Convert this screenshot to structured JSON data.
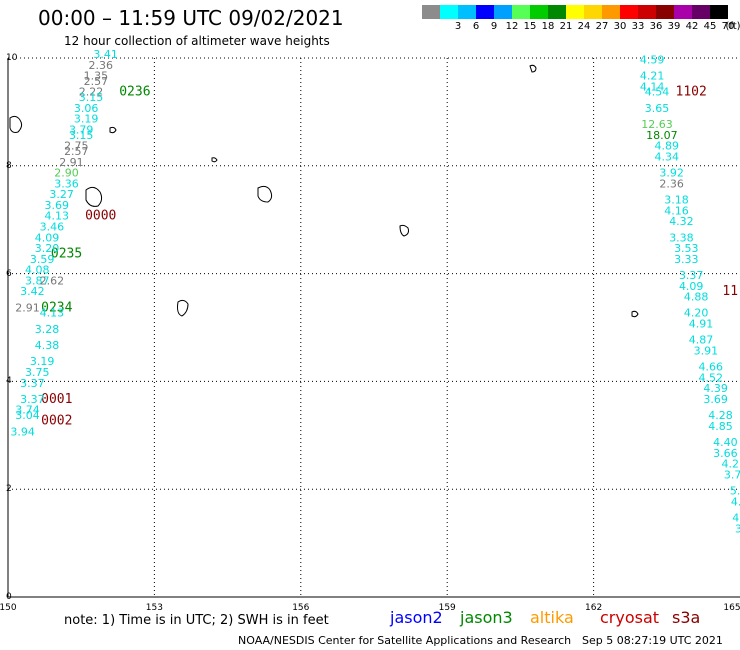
{
  "header": {
    "title": "00:00 – 11:59 UTC 09/02/2021",
    "subtitle": "12 hour collection of altimeter wave heights"
  },
  "legend": {
    "unit": "(ft)",
    "bins": [
      {
        "label": "",
        "color": "#8c8c8c"
      },
      {
        "label": "3",
        "color": "#00ffff"
      },
      {
        "label": "6",
        "color": "#00bfff"
      },
      {
        "label": "9",
        "color": "#0000ff"
      },
      {
        "label": "12",
        "color": "#00a0ff"
      },
      {
        "label": "15",
        "color": "#55ff55"
      },
      {
        "label": "18",
        "color": "#00cc00"
      },
      {
        "label": "21",
        "color": "#008800"
      },
      {
        "label": "24",
        "color": "#ffff00"
      },
      {
        "label": "27",
        "color": "#ffd700"
      },
      {
        "label": "30",
        "color": "#ff9900"
      },
      {
        "label": "33",
        "color": "#ff0000"
      },
      {
        "label": "36",
        "color": "#cc0000"
      },
      {
        "label": "39",
        "color": "#880000"
      },
      {
        "label": "42",
        "color": "#aa00aa"
      },
      {
        "label": "45",
        "color": "#660066"
      },
      {
        "label": "70",
        "color": "#000000"
      }
    ]
  },
  "axes": {
    "x_ticks": [
      "150",
      "153",
      "156",
      "159",
      "162",
      "165"
    ],
    "y_ticks": [
      "0",
      "2",
      "4",
      "6",
      "8",
      "10"
    ],
    "xlim": [
      150,
      165
    ],
    "ylim": [
      0,
      10
    ]
  },
  "track_labels": [
    {
      "text": "0236",
      "lon": 152.6,
      "lat": 9.3,
      "color": "#008800"
    },
    {
      "text": "0000",
      "lon": 151.9,
      "lat": 7.0,
      "color": "#880000"
    },
    {
      "text": "0235",
      "lon": 151.2,
      "lat": 6.3,
      "color": "#008800"
    },
    {
      "text": "0234",
      "lon": 151.0,
      "lat": 5.3,
      "color": "#008800"
    },
    {
      "text": "0001",
      "lon": 151.0,
      "lat": 3.6,
      "color": "#880000"
    },
    {
      "text": "0002",
      "lon": 151.0,
      "lat": 3.2,
      "color": "#880000"
    },
    {
      "text": "1102",
      "lon": 164.0,
      "lat": 9.3,
      "color": "#880000"
    },
    {
      "text": "11",
      "lon": 164.8,
      "lat": 5.6,
      "color": "#880000"
    }
  ],
  "observations": [
    {
      "text": "3.41",
      "lon": 152.0,
      "lat": 10.0,
      "color": "#00dddd"
    },
    {
      "text": "2.36",
      "lon": 151.9,
      "lat": 9.8,
      "color": "#777777"
    },
    {
      "text": "1.35",
      "lon": 151.8,
      "lat": 9.6,
      "color": "#777777"
    },
    {
      "text": "2.57",
      "lon": 151.8,
      "lat": 9.5,
      "color": "#777777"
    },
    {
      "text": "2.22",
      "lon": 151.7,
      "lat": 9.3,
      "color": "#777777"
    },
    {
      "text": "3.15",
      "lon": 151.7,
      "lat": 9.2,
      "color": "#00dddd"
    },
    {
      "text": "3.06",
      "lon": 151.6,
      "lat": 9.0,
      "color": "#00dddd"
    },
    {
      "text": "3.19",
      "lon": 151.6,
      "lat": 8.8,
      "color": "#00dddd"
    },
    {
      "text": "3.79",
      "lon": 151.5,
      "lat": 8.6,
      "color": "#00dddd"
    },
    {
      "text": "3.15",
      "lon": 151.5,
      "lat": 8.5,
      "color": "#00dddd"
    },
    {
      "text": "2.75",
      "lon": 151.4,
      "lat": 8.3,
      "color": "#777777"
    },
    {
      "text": "2.57",
      "lon": 151.4,
      "lat": 8.2,
      "color": "#777777"
    },
    {
      "text": "2.91",
      "lon": 151.3,
      "lat": 8.0,
      "color": "#777777"
    },
    {
      "text": "2.90",
      "lon": 151.2,
      "lat": 7.8,
      "color": "#55cc55"
    },
    {
      "text": "3.36",
      "lon": 151.2,
      "lat": 7.6,
      "color": "#00dddd"
    },
    {
      "text": "3.27",
      "lon": 151.1,
      "lat": 7.4,
      "color": "#00dddd"
    },
    {
      "text": "3.69",
      "lon": 151.0,
      "lat": 7.2,
      "color": "#00dddd"
    },
    {
      "text": "4.13",
      "lon": 151.0,
      "lat": 7.0,
      "color": "#00dddd"
    },
    {
      "text": "3.46",
      "lon": 150.9,
      "lat": 6.8,
      "color": "#00dddd"
    },
    {
      "text": "4.09",
      "lon": 150.8,
      "lat": 6.6,
      "color": "#00dddd"
    },
    {
      "text": "3.20",
      "lon": 150.8,
      "lat": 6.4,
      "color": "#00dddd"
    },
    {
      "text": "3.59",
      "lon": 150.7,
      "lat": 6.2,
      "color": "#00dddd"
    },
    {
      "text": "4.08",
      "lon": 150.6,
      "lat": 6.0,
      "color": "#00dddd"
    },
    {
      "text": "3.87",
      "lon": 150.6,
      "lat": 5.8,
      "color": "#00dddd"
    },
    {
      "text": "2.62",
      "lon": 150.9,
      "lat": 5.8,
      "color": "#777777"
    },
    {
      "text": "3.42",
      "lon": 150.5,
      "lat": 5.6,
      "color": "#00dddd"
    },
    {
      "text": "2.91",
      "lon": 150.4,
      "lat": 5.3,
      "color": "#777777"
    },
    {
      "text": "4.13",
      "lon": 150.9,
      "lat": 5.2,
      "color": "#00dddd"
    },
    {
      "text": "3.28",
      "lon": 150.8,
      "lat": 4.9,
      "color": "#00dddd"
    },
    {
      "text": "4.38",
      "lon": 150.8,
      "lat": 4.6,
      "color": "#00dddd"
    },
    {
      "text": "3.19",
      "lon": 150.7,
      "lat": 4.3,
      "color": "#00dddd"
    },
    {
      "text": "3.75",
      "lon": 150.6,
      "lat": 4.1,
      "color": "#00dddd"
    },
    {
      "text": "3.37",
      "lon": 150.5,
      "lat": 3.9,
      "color": "#00dddd"
    },
    {
      "text": "3.37",
      "lon": 150.5,
      "lat": 3.6,
      "color": "#00dddd"
    },
    {
      "text": "3.74",
      "lon": 150.4,
      "lat": 3.4,
      "color": "#00dddd"
    },
    {
      "text": "3.04",
      "lon": 150.4,
      "lat": 3.3,
      "color": "#00dddd"
    },
    {
      "text": "3.94",
      "lon": 150.3,
      "lat": 3.0,
      "color": "#00dddd"
    },
    {
      "text": "4.59",
      "lon": 163.2,
      "lat": 9.9,
      "color": "#00dddd"
    },
    {
      "text": "4.21",
      "lon": 163.2,
      "lat": 9.6,
      "color": "#00dddd"
    },
    {
      "text": "4.14",
      "lon": 163.2,
      "lat": 9.4,
      "color": "#00dddd"
    },
    {
      "text": "4.54",
      "lon": 163.3,
      "lat": 9.3,
      "color": "#00dddd"
    },
    {
      "text": "3.65",
      "lon": 163.3,
      "lat": 9.0,
      "color": "#00dddd"
    },
    {
      "text": "12.63",
      "lon": 163.3,
      "lat": 8.7,
      "color": "#55cc55"
    },
    {
      "text": "18.07",
      "lon": 163.4,
      "lat": 8.5,
      "color": "#008800"
    },
    {
      "text": "4.89",
      "lon": 163.5,
      "lat": 8.3,
      "color": "#00dddd"
    },
    {
      "text": "4.34",
      "lon": 163.5,
      "lat": 8.1,
      "color": "#00dddd"
    },
    {
      "text": "3.92",
      "lon": 163.6,
      "lat": 7.8,
      "color": "#00dddd"
    },
    {
      "text": "2.36",
      "lon": 163.6,
      "lat": 7.6,
      "color": "#777777"
    },
    {
      "text": "3.18",
      "lon": 163.7,
      "lat": 7.3,
      "color": "#00dddd"
    },
    {
      "text": "4.16",
      "lon": 163.7,
      "lat": 7.1,
      "color": "#00dddd"
    },
    {
      "text": "4.32",
      "lon": 163.8,
      "lat": 6.9,
      "color": "#00dddd"
    },
    {
      "text": "3.38",
      "lon": 163.8,
      "lat": 6.6,
      "color": "#00dddd"
    },
    {
      "text": "3.53",
      "lon": 163.9,
      "lat": 6.4,
      "color": "#00dddd"
    },
    {
      "text": "3.33",
      "lon": 163.9,
      "lat": 6.2,
      "color": "#00dddd"
    },
    {
      "text": "3.37",
      "lon": 164.0,
      "lat": 5.9,
      "color": "#00dddd"
    },
    {
      "text": "4.09",
      "lon": 164.0,
      "lat": 5.7,
      "color": "#00dddd"
    },
    {
      "text": "4.88",
      "lon": 164.1,
      "lat": 5.5,
      "color": "#00dddd"
    },
    {
      "text": "4.20",
      "lon": 164.1,
      "lat": 5.2,
      "color": "#00dddd"
    },
    {
      "text": "4.91",
      "lon": 164.2,
      "lat": 5.0,
      "color": "#00dddd"
    },
    {
      "text": "4.87",
      "lon": 164.2,
      "lat": 4.7,
      "color": "#00dddd"
    },
    {
      "text": "3.91",
      "lon": 164.3,
      "lat": 4.5,
      "color": "#00dddd"
    },
    {
      "text": "4.66",
      "lon": 164.4,
      "lat": 4.2,
      "color": "#00dddd"
    },
    {
      "text": "4.52",
      "lon": 164.4,
      "lat": 4.0,
      "color": "#00dddd"
    },
    {
      "text": "4.39",
      "lon": 164.5,
      "lat": 3.8,
      "color": "#00dddd"
    },
    {
      "text": "3.69",
      "lon": 164.5,
      "lat": 3.6,
      "color": "#00dddd"
    },
    {
      "text": "4.28",
      "lon": 164.6,
      "lat": 3.3,
      "color": "#00dddd"
    },
    {
      "text": "4.85",
      "lon": 164.6,
      "lat": 3.1,
      "color": "#00dddd"
    },
    {
      "text": "4.40",
      "lon": 164.7,
      "lat": 2.8,
      "color": "#00dddd"
    },
    {
      "text": "3.66",
      "lon": 164.7,
      "lat": 2.6,
      "color": "#00dddd"
    },
    {
      "text": "4.2",
      "lon": 164.8,
      "lat": 2.4,
      "color": "#00dddd"
    },
    {
      "text": "3.7",
      "lon": 164.85,
      "lat": 2.2,
      "color": "#00dddd"
    },
    {
      "text": "5.",
      "lon": 164.9,
      "lat": 1.9,
      "color": "#00dddd"
    },
    {
      "text": "4.",
      "lon": 164.92,
      "lat": 1.7,
      "color": "#00dddd"
    },
    {
      "text": "4.",
      "lon": 164.95,
      "lat": 1.4,
      "color": "#00dddd"
    },
    {
      "text": "3",
      "lon": 164.97,
      "lat": 1.2,
      "color": "#00dddd"
    }
  ],
  "footer": {
    "note": "note: 1) Time is in UTC; 2) SWH is in feet",
    "missions": [
      {
        "name": "jason2",
        "color": "#0000ff"
      },
      {
        "name": "jason3",
        "color": "#008800"
      },
      {
        "name": "altika",
        "color": "#ff9900"
      },
      {
        "name": "cryosat",
        "color": "#cc0000"
      },
      {
        "name": "s3a",
        "color": "#880000"
      }
    ],
    "credit": "NOAA/NESDIS Center for Satellite Applications and Research",
    "timestamp": "Sep  5 08:27:19 UTC 2021"
  }
}
